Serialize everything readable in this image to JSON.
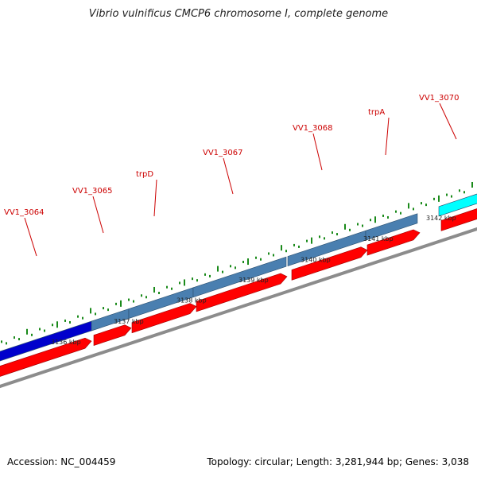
{
  "title": "Vibrio vulnificus CMCP6 chromosome I, complete genome",
  "footer": {
    "accession": "Accession: NC_004459",
    "summary": "Topology: circular; Length: 3,281,944 bp; Genes: 3,038"
  },
  "colors": {
    "gene_label": "#cc0000",
    "cds_forward": "#ff0000",
    "gene_blue": "#4a7fb0",
    "gene_dark_blue": "#0000cc",
    "gene_cyan": "#00ffff",
    "ticks": "#1a8a1a",
    "backbone": "#8c8c8c"
  },
  "scale": {
    "labels": [
      "3136 kbp",
      "3137 kbp",
      "3138 kbp",
      "3139 kbp",
      "3140 kbp",
      "3141 kbp",
      "3142 kbp"
    ]
  },
  "genes": [
    {
      "name": "VV1_3064",
      "color": "#0000cc"
    },
    {
      "name": "VV1_3065",
      "color": "#4a7fb0"
    },
    {
      "name": "trpD",
      "color": "#4a7fb0"
    },
    {
      "name": "VV1_3067",
      "color": "#4a7fb0"
    },
    {
      "name": "VV1_3068",
      "color": "#4a7fb0"
    },
    {
      "name": "trpA",
      "color": "#4a7fb0"
    },
    {
      "name": "VV1_3070",
      "color": "#00ffff"
    }
  ]
}
